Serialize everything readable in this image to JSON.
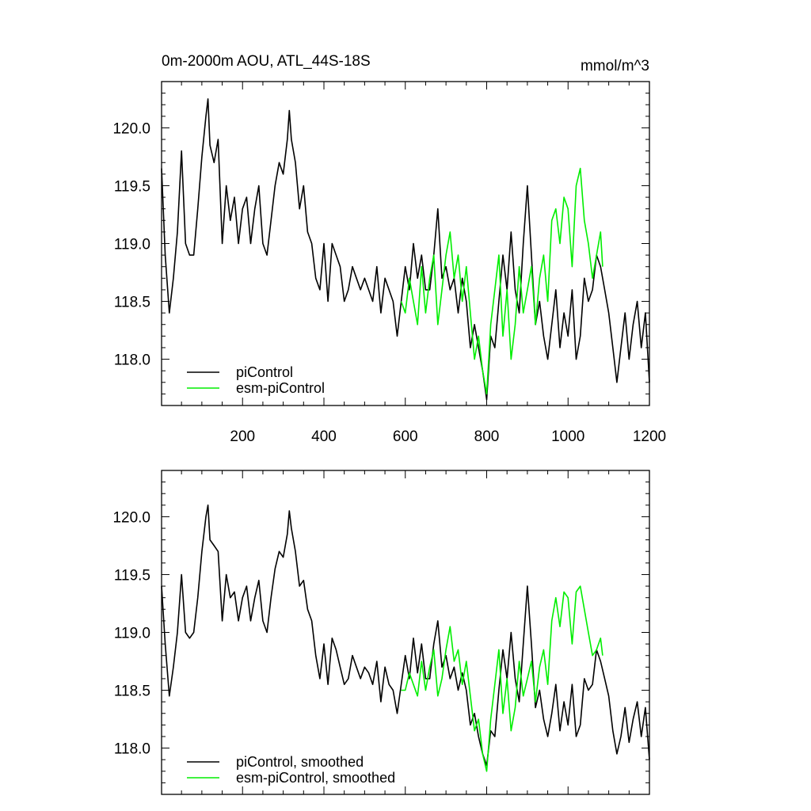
{
  "colors": {
    "piControl": "#000000",
    "esm_piControl": "#00ee00"
  },
  "panels": {
    "top": {
      "title_left": "0m-2000m AOU, ATL_44S-18S",
      "title_right": "mmol/m^3"
    },
    "bottom": {
      "title_left": "",
      "title_right": ""
    }
  },
  "chart_data": [
    {
      "type": "line",
      "title": "0m-2000m AOU, ATL_44S-18S",
      "units": "mmol/m^3",
      "xlabel": "",
      "ylabel": "",
      "xlim": [
        1,
        1200
      ],
      "ylim": [
        117.6,
        120.4
      ],
      "xticks": [
        200,
        400,
        600,
        800,
        1000,
        1200
      ],
      "yticks": [
        118.0,
        118.5,
        119.0,
        119.5,
        120.0
      ],
      "legend": {
        "position": "bottom-left"
      },
      "series": [
        {
          "name": "piControl",
          "color": "#000000",
          "x": [
            1,
            10,
            20,
            30,
            40,
            50,
            60,
            70,
            80,
            90,
            100,
            110,
            115,
            120,
            130,
            140,
            150,
            160,
            170,
            180,
            190,
            200,
            210,
            220,
            230,
            240,
            250,
            260,
            270,
            280,
            290,
            300,
            310,
            315,
            320,
            330,
            340,
            350,
            360,
            370,
            380,
            390,
            400,
            410,
            420,
            430,
            440,
            450,
            460,
            470,
            480,
            490,
            500,
            510,
            520,
            530,
            540,
            550,
            560,
            570,
            580,
            590,
            600,
            610,
            620,
            630,
            640,
            650,
            660,
            670,
            680,
            690,
            700,
            710,
            720,
            730,
            740,
            750,
            760,
            770,
            780,
            790,
            800,
            810,
            820,
            830,
            840,
            850,
            860,
            870,
            880,
            890,
            900,
            910,
            920,
            930,
            940,
            950,
            960,
            970,
            980,
            990,
            1000,
            1010,
            1020,
            1030,
            1040,
            1050,
            1060,
            1070,
            1080,
            1090,
            1100,
            1110,
            1120,
            1130,
            1140,
            1150,
            1160,
            1170,
            1180,
            1190,
            1200
          ],
          "values": [
            119.65,
            118.9,
            118.4,
            118.7,
            119.1,
            119.8,
            119.0,
            118.9,
            118.9,
            119.3,
            119.75,
            120.1,
            120.25,
            119.85,
            119.7,
            119.9,
            119.0,
            119.5,
            119.2,
            119.4,
            119.0,
            119.3,
            119.4,
            119.0,
            119.3,
            119.5,
            119.0,
            118.9,
            119.2,
            119.5,
            119.7,
            119.6,
            119.9,
            120.15,
            119.9,
            119.7,
            119.3,
            119.5,
            119.1,
            119.0,
            118.7,
            118.6,
            119.0,
            118.5,
            119.0,
            118.9,
            118.8,
            118.5,
            118.6,
            118.8,
            118.7,
            118.6,
            118.7,
            118.6,
            118.5,
            118.8,
            118.4,
            118.7,
            118.6,
            118.5,
            118.2,
            118.5,
            118.8,
            118.6,
            119.0,
            118.7,
            118.9,
            118.6,
            118.6,
            118.9,
            119.3,
            118.7,
            118.8,
            118.6,
            118.7,
            118.4,
            118.7,
            118.5,
            118.1,
            118.3,
            118.1,
            117.9,
            117.65,
            118.2,
            118.1,
            118.5,
            118.9,
            118.6,
            119.1,
            118.6,
            118.4,
            119.0,
            119.5,
            118.9,
            118.3,
            118.5,
            118.2,
            118.0,
            118.3,
            118.6,
            118.1,
            118.4,
            118.2,
            118.6,
            118.0,
            118.2,
            118.7,
            118.5,
            118.6,
            118.9,
            118.8,
            118.6,
            118.4,
            118.1,
            117.8,
            118.1,
            118.4,
            118.0,
            118.3,
            118.5,
            118.1,
            118.4,
            117.8
          ]
        },
        {
          "name": "esm-piControl",
          "color": "#00ee00",
          "x": [
            590,
            600,
            610,
            620,
            630,
            640,
            650,
            660,
            670,
            680,
            690,
            700,
            710,
            720,
            730,
            740,
            750,
            760,
            770,
            780,
            790,
            800,
            810,
            820,
            830,
            840,
            850,
            860,
            870,
            880,
            890,
            900,
            910,
            920,
            930,
            940,
            950,
            960,
            970,
            980,
            990,
            1000,
            1010,
            1020,
            1030,
            1040,
            1050,
            1060,
            1070,
            1080,
            1085
          ],
          "values": [
            118.5,
            118.4,
            118.7,
            118.5,
            118.3,
            118.8,
            118.4,
            118.7,
            118.9,
            118.3,
            118.6,
            118.9,
            119.1,
            118.7,
            118.9,
            118.5,
            118.8,
            118.4,
            118.0,
            118.2,
            117.9,
            117.7,
            118.3,
            118.6,
            118.9,
            118.2,
            118.6,
            118.0,
            118.3,
            118.8,
            118.4,
            118.6,
            118.8,
            118.3,
            118.7,
            118.9,
            118.5,
            119.2,
            119.3,
            119.0,
            119.4,
            119.3,
            118.8,
            119.5,
            119.65,
            119.2,
            119.0,
            118.7,
            118.9,
            119.1,
            118.8
          ]
        }
      ]
    },
    {
      "type": "line",
      "title": "",
      "xlabel": "",
      "ylabel": "",
      "xlim": [
        1,
        1200
      ],
      "ylim": [
        117.6,
        120.4
      ],
      "yticks": [
        118.0,
        118.5,
        119.0,
        119.5,
        120.0
      ],
      "legend": {
        "position": "bottom-left"
      },
      "series": [
        {
          "name": "piControl, smoothed",
          "color": "#000000",
          "x": [
            1,
            10,
            20,
            30,
            40,
            50,
            60,
            70,
            80,
            90,
            100,
            110,
            115,
            120,
            130,
            140,
            150,
            160,
            170,
            180,
            190,
            200,
            210,
            220,
            230,
            240,
            250,
            260,
            270,
            280,
            290,
            300,
            310,
            315,
            320,
            330,
            340,
            350,
            360,
            370,
            380,
            390,
            400,
            410,
            420,
            430,
            440,
            450,
            460,
            470,
            480,
            490,
            500,
            510,
            520,
            530,
            540,
            550,
            560,
            570,
            580,
            590,
            600,
            610,
            620,
            630,
            640,
            650,
            660,
            670,
            680,
            690,
            700,
            710,
            720,
            730,
            740,
            750,
            760,
            770,
            780,
            790,
            800,
            810,
            820,
            830,
            840,
            850,
            860,
            870,
            880,
            890,
            900,
            910,
            920,
            930,
            940,
            950,
            960,
            970,
            980,
            990,
            1000,
            1010,
            1020,
            1030,
            1040,
            1050,
            1060,
            1070,
            1080,
            1090,
            1100,
            1110,
            1120,
            1130,
            1140,
            1150,
            1160,
            1170,
            1180,
            1190,
            1200
          ],
          "values": [
            119.4,
            118.9,
            118.45,
            118.7,
            119.0,
            119.5,
            119.0,
            118.95,
            119.0,
            119.3,
            119.7,
            120.0,
            120.1,
            119.8,
            119.75,
            119.7,
            119.1,
            119.5,
            119.3,
            119.35,
            119.1,
            119.3,
            119.4,
            119.1,
            119.3,
            119.45,
            119.1,
            119.0,
            119.3,
            119.55,
            119.7,
            119.65,
            119.85,
            120.05,
            119.9,
            119.7,
            119.4,
            119.45,
            119.2,
            119.1,
            118.8,
            118.6,
            118.9,
            118.55,
            118.95,
            118.85,
            118.7,
            118.55,
            118.6,
            118.8,
            118.7,
            118.6,
            118.7,
            118.65,
            118.55,
            118.75,
            118.4,
            118.7,
            118.55,
            118.5,
            118.3,
            118.55,
            118.8,
            118.6,
            118.95,
            118.65,
            118.9,
            118.6,
            118.6,
            118.9,
            119.1,
            118.7,
            118.8,
            118.6,
            118.7,
            118.5,
            118.65,
            118.5,
            118.2,
            118.3,
            118.1,
            117.95,
            117.85,
            118.15,
            118.1,
            118.5,
            118.85,
            118.6,
            119.0,
            118.6,
            118.4,
            118.9,
            119.4,
            118.9,
            118.35,
            118.5,
            118.25,
            118.1,
            118.3,
            118.55,
            118.15,
            118.4,
            118.2,
            118.55,
            118.1,
            118.2,
            118.6,
            118.5,
            118.55,
            118.85,
            118.75,
            118.6,
            118.45,
            118.15,
            117.95,
            118.1,
            118.35,
            118.05,
            118.25,
            118.4,
            118.1,
            118.35,
            117.9
          ]
        },
        {
          "name": "esm-piControl, smoothed",
          "color": "#00ee00",
          "x": [
            590,
            600,
            610,
            620,
            630,
            640,
            650,
            660,
            670,
            680,
            690,
            700,
            710,
            720,
            730,
            740,
            750,
            760,
            770,
            780,
            790,
            800,
            810,
            820,
            830,
            840,
            850,
            860,
            870,
            880,
            890,
            900,
            910,
            920,
            930,
            940,
            950,
            960,
            970,
            980,
            990,
            1000,
            1010,
            1020,
            1030,
            1040,
            1050,
            1060,
            1070,
            1080,
            1085
          ],
          "values": [
            118.5,
            118.5,
            118.65,
            118.55,
            118.45,
            118.75,
            118.5,
            118.7,
            118.85,
            118.45,
            118.6,
            118.85,
            119.05,
            118.75,
            118.85,
            118.55,
            118.75,
            118.45,
            118.15,
            118.25,
            117.95,
            117.8,
            118.25,
            118.55,
            118.85,
            118.3,
            118.6,
            118.15,
            118.35,
            118.75,
            118.45,
            118.6,
            118.75,
            118.4,
            118.7,
            118.85,
            118.55,
            119.1,
            119.3,
            119.05,
            119.35,
            119.3,
            118.9,
            119.35,
            119.4,
            119.2,
            119.0,
            118.8,
            118.85,
            118.95,
            118.8
          ]
        }
      ]
    }
  ],
  "legend": {
    "top": [
      "piControl",
      "esm-piControl"
    ],
    "bottom": [
      "piControl, smoothed",
      "esm-piControl, smoothed"
    ]
  }
}
